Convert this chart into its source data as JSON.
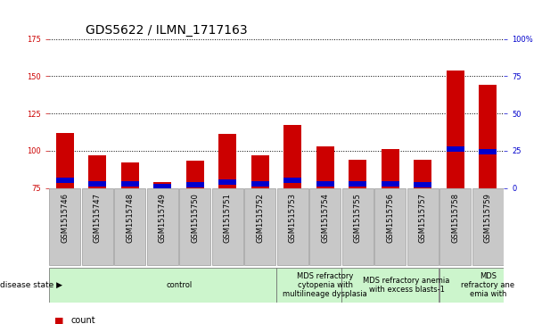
{
  "title": "GDS5622 / ILMN_1717163",
  "samples": [
    "GSM1515746",
    "GSM1515747",
    "GSM1515748",
    "GSM1515749",
    "GSM1515750",
    "GSM1515751",
    "GSM1515752",
    "GSM1515753",
    "GSM1515754",
    "GSM1515755",
    "GSM1515756",
    "GSM1515757",
    "GSM1515758",
    "GSM1515759"
  ],
  "counts": [
    112,
    97,
    92,
    79,
    93,
    111,
    97,
    117,
    103,
    94,
    101,
    94,
    154,
    144
  ],
  "percentile_ranks": [
    5,
    3,
    3,
    1,
    2,
    4,
    3,
    5,
    3,
    3,
    3,
    2,
    26,
    24
  ],
  "ylim_left": [
    75,
    175
  ],
  "ylim_right": [
    0,
    100
  ],
  "yticks_left": [
    75,
    100,
    125,
    150,
    175
  ],
  "yticks_right": [
    0,
    25,
    50,
    75,
    100
  ],
  "disease_groups": [
    {
      "label": "control",
      "start": 0,
      "end": 7
    },
    {
      "label": "MDS refractory\ncytopenia with\nmultilineage dysplasia",
      "start": 7,
      "end": 9
    },
    {
      "label": "MDS refractory anemia\nwith excess blasts-1",
      "start": 9,
      "end": 12
    },
    {
      "label": "MDS\nrefractory ane\nemia with",
      "start": 12,
      "end": 14
    }
  ],
  "group_color": "#ccf5cc",
  "bar_color": "#cc0000",
  "percentile_color": "#0000cc",
  "sample_bg_color": "#c8c8c8",
  "title_fontsize": 10,
  "tick_fontsize": 6,
  "ds_fontsize": 6,
  "legend_fontsize": 7
}
